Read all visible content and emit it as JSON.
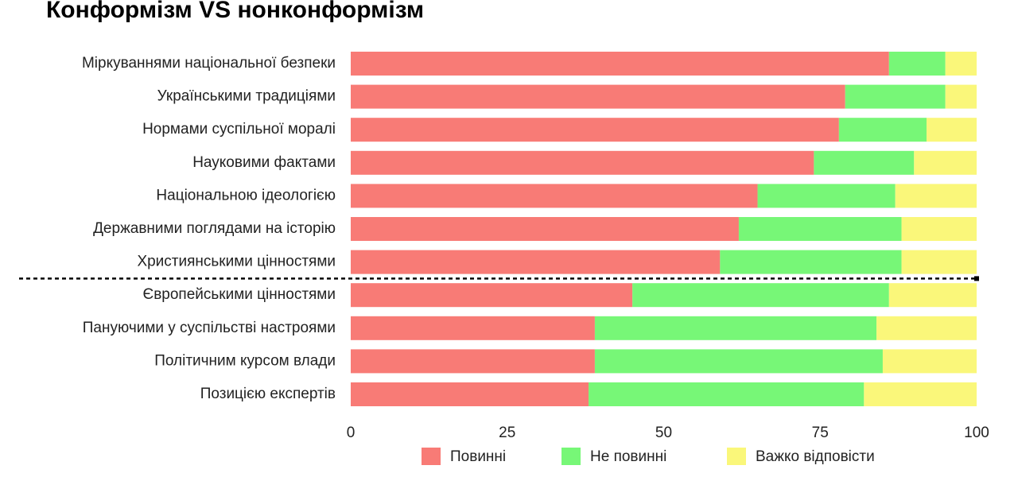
{
  "chart_data": {
    "type": "stacked-bar-horizontal",
    "title": "Конформізм VS нонконформізм",
    "categories": [
      "Міркуваннями національної безпеки",
      "Українськими традиціями",
      "Нормами суспільної моралі",
      "Науковими фактами",
      "Національною ідеологією",
      "Державними поглядами на історію",
      "Християнськими цінностями",
      "Європейськими цінностями",
      "Пануючими у суспільстві настроями",
      "Політичним курсом влади",
      "Позицією експертів"
    ],
    "series": [
      {
        "name": "Повинні",
        "color": "#f87b76",
        "values": [
          86,
          79,
          78,
          74,
          65,
          62,
          59,
          45,
          39,
          39,
          38
        ]
      },
      {
        "name": "Не повинні",
        "color": "#77f777",
        "values": [
          9,
          16,
          14,
          16,
          22,
          26,
          29,
          41,
          45,
          46,
          44
        ]
      },
      {
        "name": "Важко відповісти",
        "color": "#faf77a",
        "values": [
          5,
          5,
          8,
          10,
          13,
          12,
          12,
          14,
          16,
          15,
          18
        ]
      }
    ],
    "xlim": [
      0,
      100
    ],
    "xticks": [
      0,
      25,
      50,
      75,
      100
    ],
    "grid": false,
    "legend": "bottom"
  }
}
